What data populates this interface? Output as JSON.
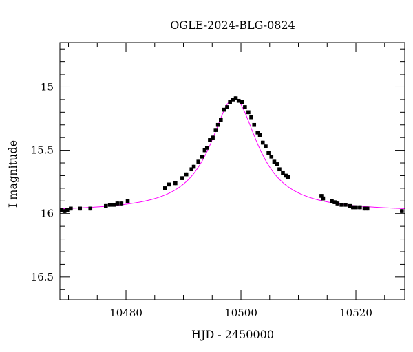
{
  "chart_data": {
    "type": "scatter",
    "title": "OGLE-2024-BLG-0824",
    "xlabel": "HJD - 2450000",
    "ylabel": "I magnitude",
    "xlim": [
      10468.5,
      10528.5
    ],
    "ylim": [
      16.68,
      14.65
    ],
    "y_inverted": true,
    "grid": false,
    "x_ticks": [
      10480,
      10500,
      10520
    ],
    "y_ticks": [
      15,
      15.5,
      16,
      16.5
    ],
    "x_tick_labels": [
      "10480",
      "10500",
      "10520"
    ],
    "y_tick_labels": [
      "15",
      "15.5",
      "16",
      "16.5"
    ],
    "model_color": "#ff00ff",
    "point_color": "#000000",
    "model_curve": {
      "t0": 10498.8,
      "baseline_mag": 15.985,
      "peak_mag": 15.09,
      "width_days": 5.0
    },
    "series": [
      {
        "x": [
          10468.8,
          10469.3,
          10469.8,
          10470.4,
          10472.0,
          10473.8,
          10476.5,
          10477.2,
          10477.9,
          10478.5,
          10479.2,
          10480.3,
          10486.8,
          10487.5,
          10488.6,
          10489.8,
          10490.5,
          10491.4,
          10491.8,
          10492.6,
          10493.2,
          10493.7,
          10494.1,
          10494.6,
          10495.1,
          10495.6,
          10496.0,
          10496.5,
          10497.1,
          10497.6,
          10498.1,
          10498.6,
          10499.1,
          10499.6,
          10500.2,
          10500.7,
          10501.3,
          10501.8,
          10502.3,
          10502.9,
          10503.3,
          10503.8,
          10504.3,
          10504.8,
          10505.3,
          10505.8,
          10506.3,
          10506.7,
          10507.3,
          10507.8,
          10508.2,
          10514.0,
          10514.3,
          10515.8,
          10516.3,
          10516.8,
          10517.5,
          10518.2,
          10519.0,
          10519.5,
          10520.0,
          10520.7,
          10521.5,
          10522.0,
          10528.0
        ],
        "y": [
          15.97,
          15.98,
          15.97,
          15.96,
          15.96,
          15.96,
          15.94,
          15.93,
          15.93,
          15.92,
          15.92,
          15.9,
          15.8,
          15.77,
          15.76,
          15.72,
          15.69,
          15.65,
          15.63,
          15.59,
          15.55,
          15.5,
          15.48,
          15.42,
          15.4,
          15.34,
          15.3,
          15.26,
          15.18,
          15.16,
          15.12,
          15.1,
          15.09,
          15.11,
          15.12,
          15.16,
          15.2,
          15.24,
          15.3,
          15.36,
          15.38,
          15.44,
          15.47,
          15.52,
          15.55,
          15.59,
          15.61,
          15.65,
          15.68,
          15.7,
          15.71,
          15.86,
          15.88,
          15.9,
          15.91,
          15.92,
          15.93,
          15.93,
          15.94,
          15.95,
          15.95,
          15.95,
          15.96,
          15.96,
          15.98
        ],
        "err": [
          0.015,
          0.015,
          0.015,
          0.015,
          0.015,
          0.015,
          0.015,
          0.015,
          0.015,
          0.015,
          0.015,
          0.015,
          0.015,
          0.015,
          0.015,
          0.015,
          0.015,
          0.015,
          0.015,
          0.015,
          0.015,
          0.015,
          0.015,
          0.015,
          0.015,
          0.015,
          0.015,
          0.015,
          0.015,
          0.015,
          0.015,
          0.015,
          0.015,
          0.015,
          0.015,
          0.015,
          0.015,
          0.015,
          0.015,
          0.015,
          0.015,
          0.015,
          0.015,
          0.015,
          0.015,
          0.015,
          0.015,
          0.015,
          0.015,
          0.015,
          0.015,
          0.015,
          0.015,
          0.015,
          0.015,
          0.015,
          0.015,
          0.015,
          0.015,
          0.015,
          0.015,
          0.015,
          0.015,
          0.015,
          0.015
        ]
      }
    ]
  }
}
